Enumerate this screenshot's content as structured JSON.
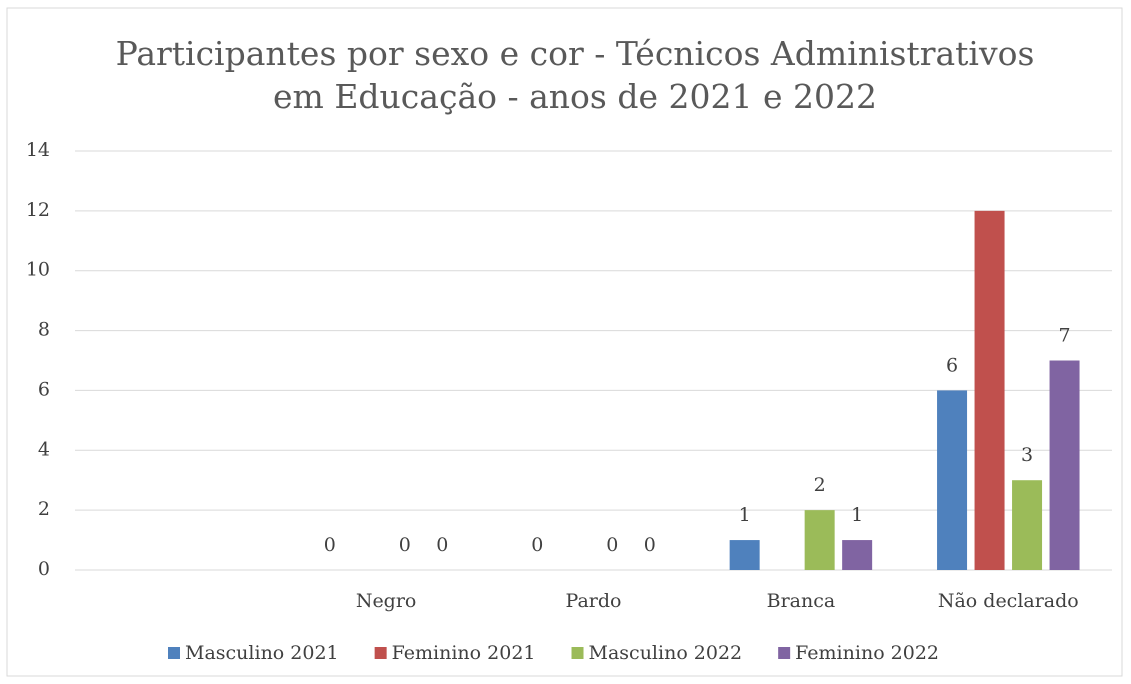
{
  "chart_data": {
    "type": "bar",
    "title": [
      "Participantes por sexo e cor -  Técnicos Administrativos",
      "em Educação - anos de 2021 e 2022"
    ],
    "categories": [
      null,
      "Negro",
      "Pardo",
      "Branca",
      "Não declarado"
    ],
    "series": [
      {
        "name": "Masculino 2021",
        "color": "#4f81bd",
        "values": [
          null,
          0,
          0,
          1,
          6
        ],
        "data_labels": true
      },
      {
        "name": "Feminino 2021",
        "color": "#c0504d",
        "values": [
          null,
          null,
          null,
          null,
          12
        ],
        "data_labels": false
      },
      {
        "name": "Masculino 2022",
        "color": "#9bbb59",
        "values": [
          null,
          0,
          0,
          2,
          3
        ],
        "data_labels": true
      },
      {
        "name": "Feminino 2022",
        "color": "#8064a2",
        "values": [
          null,
          0,
          0,
          1,
          7
        ],
        "data_labels": true
      }
    ],
    "ylim": [
      0,
      14
    ],
    "yticks": [
      0,
      2,
      4,
      6,
      8,
      10,
      12,
      14
    ],
    "grid": true,
    "legend": "bottom"
  }
}
